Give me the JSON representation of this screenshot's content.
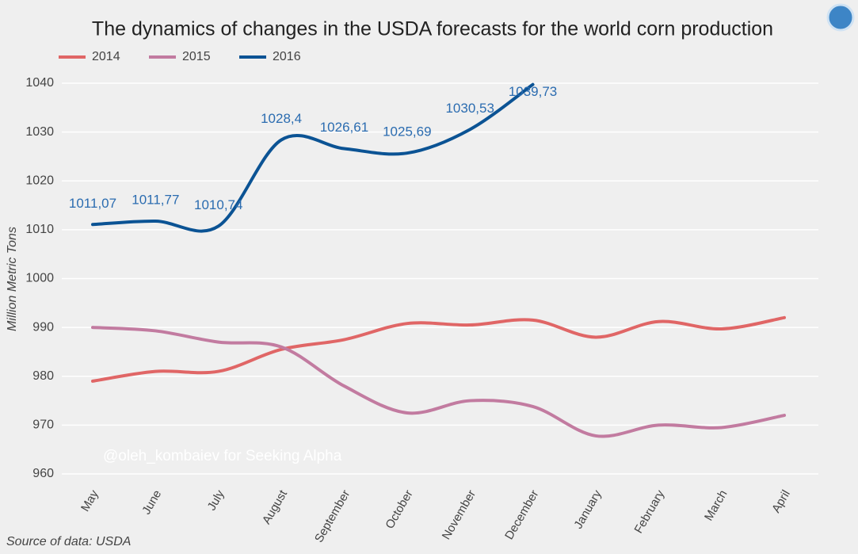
{
  "chart_data": {
    "type": "line",
    "title": "The dynamics of changes in the USDA forecasts for the world corn production",
    "ylabel": "Million Metric Tons",
    "source": "Source of data: USDA",
    "watermark": "@oleh_kombaiev for Seeking Alpha",
    "categories": [
      "May",
      "June",
      "July",
      "August",
      "September",
      "October",
      "November",
      "December",
      "January",
      "February",
      "March",
      "April"
    ],
    "series": [
      {
        "name": "2014",
        "color": "#e06666",
        "values": [
          979,
          981,
          981,
          985.5,
          987.5,
          990.8,
          990.5,
          991.5,
          988,
          991.2,
          989.7,
          992
        ]
      },
      {
        "name": "2015",
        "color": "#c27ba0",
        "values": [
          990,
          989.3,
          987,
          986,
          978,
          972.5,
          975,
          973.8,
          967.8,
          970,
          969.5,
          972
        ]
      },
      {
        "name": "2016",
        "color": "#0b5394",
        "values": [
          1011.07,
          1011.77,
          1010.74,
          1028.4,
          1026.61,
          1025.69,
          1030.53,
          1039.73,
          null,
          null,
          null,
          null
        ],
        "value_labels": [
          "1011,07",
          "1011,77",
          "1010,74",
          "1028,4",
          "1026,61",
          "1025,69",
          "1030,53",
          "1039,73",
          null,
          null,
          null,
          null
        ]
      }
    ],
    "ylim": [
      960,
      1040
    ],
    "yticks": [
      960,
      970,
      980,
      990,
      1000,
      1010,
      1020,
      1030,
      1040
    ],
    "grid": true,
    "legend": "top-left"
  }
}
